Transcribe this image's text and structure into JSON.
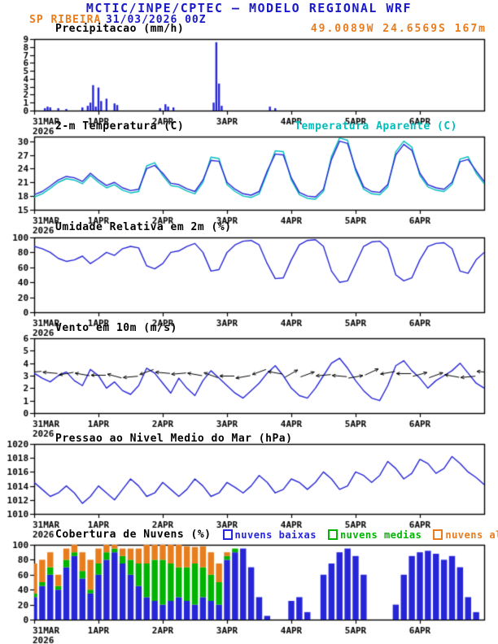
{
  "header": {
    "title": "MCTIC/INPE/CPTEC — MODELO REGIONAL WRF",
    "station": "SP RIBEIRA",
    "run": "31/03/2026 00Z",
    "location": "49.0089W 24.6569S 167m"
  },
  "colors": {
    "header_blue": "#1a1ac8",
    "accent_orange": "#e87d1e",
    "line_blue": "#2626d8",
    "apparent_cyan": "#00bdbd",
    "cloud_green": "#00b400",
    "axis_black": "#000000"
  },
  "x_axis": {
    "labels": [
      "31MAR",
      "1APR",
      "2APR",
      "3APR",
      "4APR",
      "5APR",
      "6APR"
    ],
    "year": "2026",
    "hours_total": 168,
    "label_hours": [
      0,
      24,
      48,
      72,
      96,
      120,
      144
    ]
  },
  "chart_data": [
    {
      "id": "precip",
      "type": "bar",
      "title": "Precipitacao (mm/h)",
      "ylim": [
        0,
        9
      ],
      "yticks": [
        0,
        1,
        2,
        3,
        4,
        5,
        6,
        7,
        8,
        9
      ],
      "bars_t": [
        4,
        5,
        6,
        9,
        12,
        18,
        20,
        21,
        22,
        23,
        24,
        25,
        27,
        30,
        31,
        47,
        49,
        50,
        52,
        67,
        68,
        69,
        70,
        88,
        90
      ],
      "bars_v": [
        0.3,
        0.5,
        0.4,
        0.3,
        0.2,
        0.4,
        0.6,
        1.0,
        3.2,
        0.5,
        2.9,
        1.2,
        1.5,
        0.9,
        0.7,
        0.3,
        0.8,
        0.5,
        0.4,
        1.0,
        8.6,
        3.4,
        0.6,
        0.5,
        0.3
      ]
    },
    {
      "id": "temp",
      "type": "line",
      "title": "2-m Temperatura (C)",
      "ylim": [
        15,
        31
      ],
      "yticks": [
        15,
        18,
        21,
        24,
        27,
        30
      ],
      "step_hours": 3,
      "series": [
        {
          "name": "2-m Temperatura (C)",
          "color": "#2626d8",
          "values": [
            18.3,
            19.0,
            20.2,
            21.5,
            22.3,
            22.0,
            21.2,
            23.0,
            21.5,
            20.3,
            21.0,
            19.8,
            19.2,
            19.5,
            24.0,
            24.7,
            23.0,
            20.8,
            20.5,
            19.6,
            19.0,
            21.5,
            25.8,
            25.6,
            21.0,
            19.5,
            18.5,
            18.2,
            19.0,
            23.5,
            27.2,
            27.0,
            22.0,
            18.8,
            18.0,
            17.8,
            19.5,
            26.0,
            30.0,
            29.5,
            24.0,
            20.0,
            19.0,
            18.8,
            20.5,
            27.0,
            29.3,
            28.0,
            23.0,
            20.5,
            19.8,
            19.5,
            21.0,
            25.5,
            26.0,
            23.5,
            21.2
          ]
        },
        {
          "name": "Temperatura Aparente (C)",
          "color": "#00bdbd",
          "values": [
            17.8,
            18.5,
            19.7,
            21.0,
            21.8,
            21.5,
            20.7,
            22.5,
            21.0,
            19.8,
            20.5,
            19.3,
            18.7,
            19.0,
            24.6,
            25.3,
            22.5,
            20.3,
            20.0,
            19.1,
            18.5,
            21.0,
            26.5,
            26.2,
            20.5,
            19.0,
            18.0,
            17.7,
            18.5,
            23.0,
            27.9,
            27.7,
            21.5,
            18.3,
            17.5,
            17.3,
            19.0,
            26.7,
            30.7,
            30.2,
            23.5,
            19.5,
            18.5,
            18.3,
            20.0,
            27.7,
            30.0,
            28.7,
            22.5,
            20.0,
            19.3,
            19.0,
            20.5,
            26.1,
            26.6,
            23.0,
            20.7
          ]
        }
      ]
    },
    {
      "id": "rh",
      "type": "line",
      "title": "Umidade Relativa em 2m (%)",
      "ylim": [
        0,
        100
      ],
      "yticks": [
        0,
        20,
        40,
        60,
        80,
        100
      ],
      "step_hours": 3,
      "series": [
        {
          "name": "Umidade Relativa em 2m (%)",
          "color": "#2626d8",
          "values": [
            88,
            85,
            80,
            72,
            68,
            70,
            75,
            65,
            72,
            80,
            76,
            85,
            88,
            86,
            62,
            58,
            65,
            80,
            82,
            88,
            92,
            80,
            55,
            57,
            80,
            90,
            95,
            96,
            90,
            65,
            45,
            46,
            70,
            90,
            96,
            97,
            88,
            55,
            40,
            42,
            65,
            88,
            94,
            95,
            85,
            50,
            42,
            46,
            70,
            88,
            92,
            93,
            85,
            55,
            52,
            70,
            80
          ]
        }
      ]
    },
    {
      "id": "wind",
      "type": "line",
      "title": "Vento em 10m (m/s)",
      "ylim": [
        0,
        6
      ],
      "yticks": [
        0,
        1,
        2,
        3,
        4,
        5,
        6
      ],
      "step_hours": 3,
      "barb_step_hours": 6,
      "barb_dirs_deg": [
        185,
        175,
        190,
        170,
        180,
        165,
        185,
        200,
        175,
        185,
        170,
        160,
        180,
        190,
        200,
        170,
        30,
        20,
        185,
        175,
        10,
        25,
        190,
        180,
        15,
        20,
        170,
        185,
        175
      ],
      "series": [
        {
          "name": "Vento em 10m (m/s)",
          "color": "#2626d8",
          "values": [
            3.2,
            2.8,
            2.5,
            3.0,
            3.3,
            2.6,
            2.2,
            3.5,
            3.0,
            2.0,
            2.5,
            1.8,
            1.5,
            2.2,
            3.6,
            3.2,
            2.4,
            1.6,
            2.8,
            2.0,
            1.4,
            2.6,
            3.4,
            2.8,
            2.2,
            1.6,
            1.2,
            1.8,
            2.4,
            3.2,
            3.8,
            3.0,
            2.0,
            1.4,
            1.2,
            2.0,
            3.0,
            4.0,
            4.4,
            3.6,
            2.6,
            1.8,
            1.2,
            1.0,
            2.2,
            3.8,
            4.2,
            3.4,
            2.8,
            2.0,
            2.6,
            3.0,
            3.4,
            4.0,
            3.2,
            2.4,
            2.0
          ]
        }
      ]
    },
    {
      "id": "pres",
      "type": "line",
      "title": "Pressao ao Nivel Medio do Mar (hPa)",
      "ylim": [
        1010,
        1020
      ],
      "yticks": [
        1010,
        1012,
        1014,
        1016,
        1018,
        1020
      ],
      "step_hours": 3,
      "series": [
        {
          "name": "Pressao ao Nivel Medio do Mar (hPa)",
          "color": "#2626d8",
          "values": [
            1014.5,
            1013.5,
            1012.5,
            1013.0,
            1014.0,
            1013.0,
            1011.5,
            1012.5,
            1014.0,
            1013.0,
            1012.0,
            1013.5,
            1015.0,
            1014.0,
            1012.5,
            1013.0,
            1014.5,
            1013.5,
            1012.5,
            1013.5,
            1015.0,
            1014.0,
            1012.5,
            1013.0,
            1014.5,
            1013.8,
            1013.0,
            1014.0,
            1015.5,
            1014.5,
            1013.0,
            1013.5,
            1015.0,
            1014.5,
            1013.5,
            1014.5,
            1016.0,
            1015.0,
            1013.5,
            1014.0,
            1016.0,
            1015.5,
            1014.5,
            1015.5,
            1017.5,
            1016.5,
            1015.0,
            1015.8,
            1017.8,
            1017.2,
            1015.8,
            1016.5,
            1018.2,
            1017.2,
            1016.0,
            1015.2,
            1014.2
          ]
        }
      ]
    },
    {
      "id": "clouds",
      "type": "stacked_bar",
      "title": "Cobertura de Nuvens (%)",
      "ylim": [
        0,
        100
      ],
      "yticks": [
        0,
        20,
        40,
        60,
        80,
        100
      ],
      "step_hours": 3,
      "layers": [
        {
          "name": "nuvens baixas",
          "color": "#2626d8"
        },
        {
          "name": "nuvens medias",
          "color": "#00b400"
        },
        {
          "name": "nuvens altas",
          "color": "#e87d1e"
        }
      ],
      "values": [
        [
          30,
          5,
          40
        ],
        [
          45,
          5,
          30
        ],
        [
          60,
          10,
          20
        ],
        [
          40,
          5,
          15
        ],
        [
          70,
          10,
          15
        ],
        [
          85,
          5,
          10
        ],
        [
          55,
          10,
          25
        ],
        [
          35,
          5,
          40
        ],
        [
          60,
          15,
          20
        ],
        [
          80,
          10,
          10
        ],
        [
          90,
          5,
          5
        ],
        [
          75,
          10,
          10
        ],
        [
          60,
          20,
          15
        ],
        [
          45,
          30,
          20
        ],
        [
          30,
          45,
          25
        ],
        [
          25,
          55,
          20
        ],
        [
          20,
          60,
          20
        ],
        [
          25,
          50,
          25
        ],
        [
          30,
          40,
          30
        ],
        [
          25,
          45,
          28
        ],
        [
          20,
          55,
          22
        ],
        [
          30,
          40,
          28
        ],
        [
          25,
          35,
          30
        ],
        [
          20,
          30,
          25
        ],
        [
          80,
          5,
          5
        ],
        [
          90,
          5,
          0
        ],
        [
          95,
          0,
          0
        ],
        [
          70,
          0,
          0
        ],
        [
          30,
          0,
          0
        ],
        [
          5,
          0,
          0
        ],
        [
          0,
          0,
          0
        ],
        [
          0,
          0,
          0
        ],
        [
          25,
          0,
          0
        ],
        [
          30,
          0,
          0
        ],
        [
          10,
          0,
          0
        ],
        [
          0,
          0,
          0
        ],
        [
          60,
          0,
          0
        ],
        [
          75,
          0,
          0
        ],
        [
          90,
          0,
          0
        ],
        [
          95,
          0,
          0
        ],
        [
          85,
          0,
          0
        ],
        [
          60,
          0,
          0
        ],
        [
          0,
          0,
          0
        ],
        [
          0,
          0,
          0
        ],
        [
          0,
          0,
          0
        ],
        [
          20,
          0,
          0
        ],
        [
          60,
          0,
          0
        ],
        [
          85,
          0,
          0
        ],
        [
          90,
          0,
          0
        ],
        [
          92,
          0,
          0
        ],
        [
          88,
          0,
          0
        ],
        [
          80,
          0,
          0
        ],
        [
          85,
          0,
          0
        ],
        [
          70,
          0,
          0
        ],
        [
          30,
          0,
          0
        ],
        [
          10,
          0,
          0
        ],
        [
          0,
          0,
          0
        ]
      ]
    }
  ]
}
